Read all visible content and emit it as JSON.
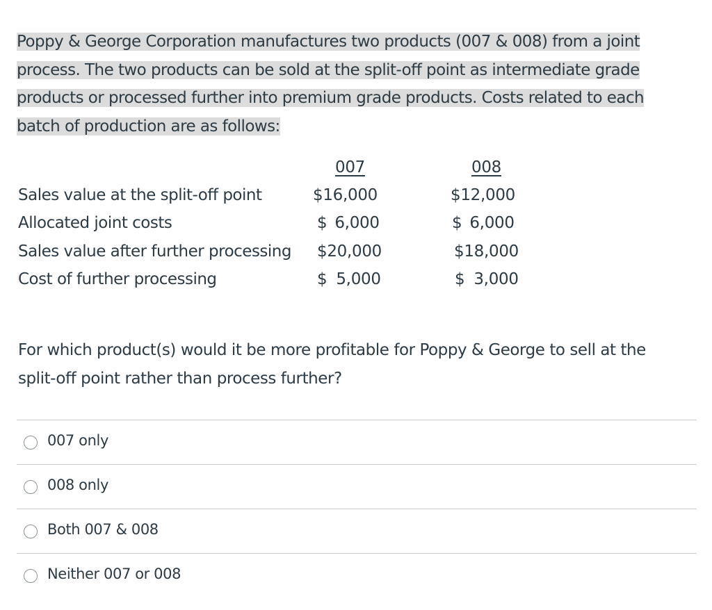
{
  "intro": {
    "line1": "Poppy & George Corporation manufactures two products (007 & 008) from a joint",
    "line2": "process. The two products can be sold at the split-off point as intermediate grade",
    "line3": "products or processed further into premium grade products. Costs related to each",
    "line4": "batch of production are as follows:"
  },
  "table": {
    "headers": [
      "007",
      "008"
    ],
    "rows": [
      {
        "label": "Sales value at the split-off point",
        "v007": "$16,000",
        "v008": "$12,000"
      },
      {
        "label": "Allocated joint costs",
        "v007": "$ 6,000",
        "v008": "$ 6,000"
      },
      {
        "label": "Sales value after further processing",
        "v007": "$20,000",
        "v008": "$18,000"
      },
      {
        "label": "Cost of further processing",
        "v007": "$ 5,000",
        "v008": "$ 3,000"
      }
    ]
  },
  "question": {
    "line1": "For which product(s) would it be more profitable for Poppy & George to sell at the",
    "line2": "split-off point rather than process further?"
  },
  "options": [
    "007 only",
    "008 only",
    "Both 007 & 008",
    "Neither 007 or 008"
  ]
}
